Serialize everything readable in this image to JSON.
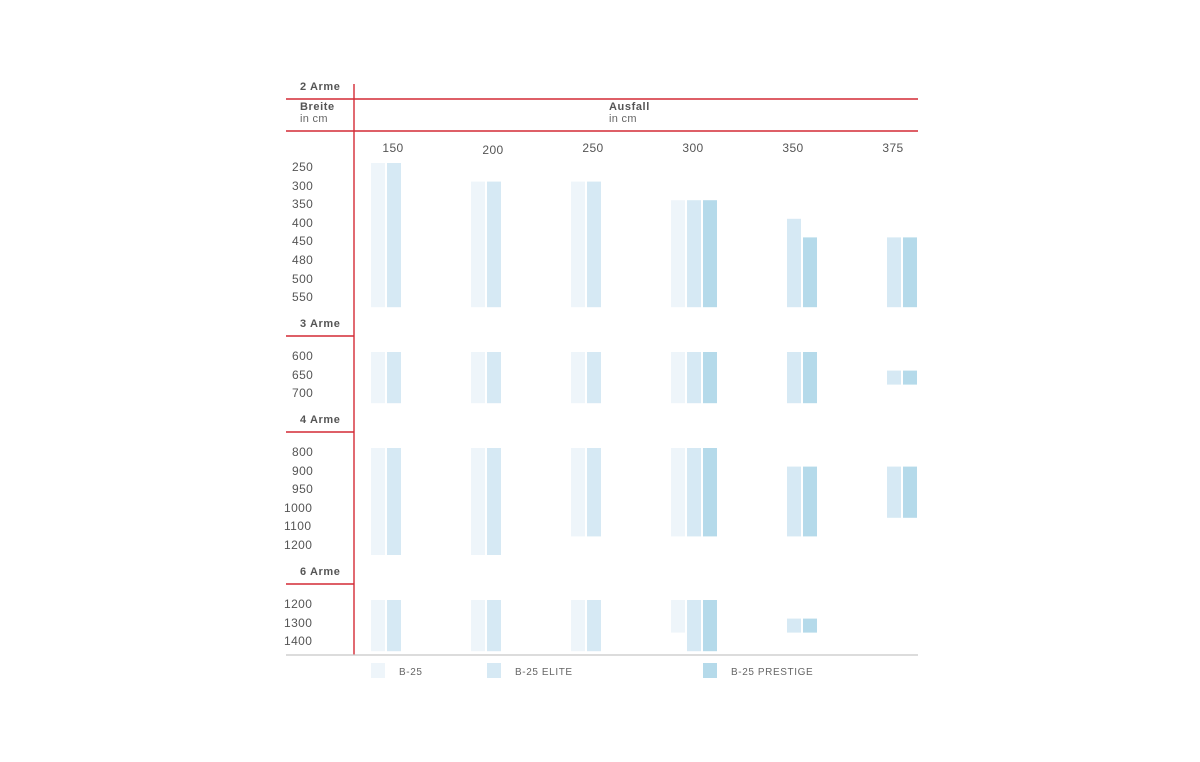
{
  "header": {
    "breite": "Breite",
    "breite_unit": "in cm",
    "ausfall": "Ausfall",
    "ausfall_unit": "in cm"
  },
  "colors": {
    "B-25": "#eef5fa",
    "B-25 ELITE": "#d6e9f4",
    "B-25 PRESTIGE": "#b5daea",
    "grid_red": "#d42a35",
    "baseline_gray": "#c8c8c8"
  },
  "chart_data": {
    "type": "table",
    "x_label": "Ausfall",
    "x_unit": "in cm",
    "y_label": "Breite",
    "y_unit": "in cm",
    "x_values": [
      "150",
      "200",
      "250",
      "300",
      "350",
      "375"
    ],
    "models": [
      "B-25",
      "B-25 ELITE",
      "B-25 PRESTIGE"
    ],
    "groups": [
      {
        "label": "2 Arme",
        "widths": [
          "250",
          "300",
          "350",
          "400",
          "450",
          "480",
          "500",
          "550"
        ],
        "availability": {
          "150": {
            "B-25": [
              "250",
              "550"
            ],
            "B-25 ELITE": [
              "250",
              "550"
            ]
          },
          "200": {
            "B-25": [
              "300",
              "550"
            ],
            "B-25 ELITE": [
              "300",
              "550"
            ]
          },
          "250": {
            "B-25": [
              "300",
              "550"
            ],
            "B-25 ELITE": [
              "300",
              "550"
            ]
          },
          "300": {
            "B-25": [
              "350",
              "550"
            ],
            "B-25 ELITE": [
              "350",
              "550"
            ],
            "B-25 PRESTIGE": [
              "350",
              "550"
            ]
          },
          "350": {
            "B-25 ELITE": [
              "400",
              "550"
            ],
            "B-25 PRESTIGE": [
              "450",
              "550"
            ]
          },
          "375": {
            "B-25 ELITE": [
              "450",
              "550"
            ],
            "B-25 PRESTIGE": [
              "450",
              "550"
            ]
          }
        }
      },
      {
        "label": "3 Arme",
        "widths": [
          "600",
          "650",
          "700"
        ],
        "availability": {
          "150": {
            "B-25": [
              "600",
              "700"
            ],
            "B-25 ELITE": [
              "600",
              "700"
            ]
          },
          "200": {
            "B-25": [
              "600",
              "700"
            ],
            "B-25 ELITE": [
              "600",
              "700"
            ]
          },
          "250": {
            "B-25": [
              "600",
              "700"
            ],
            "B-25 ELITE": [
              "600",
              "700"
            ]
          },
          "300": {
            "B-25": [
              "600",
              "700"
            ],
            "B-25 ELITE": [
              "600",
              "700"
            ],
            "B-25 PRESTIGE": [
              "600",
              "700"
            ]
          },
          "350": {
            "B-25 ELITE": [
              "600",
              "700"
            ],
            "B-25 PRESTIGE": [
              "600",
              "700"
            ]
          },
          "375": {
            "B-25 ELITE": [
              "650",
              "650"
            ],
            "B-25 PRESTIGE": [
              "650",
              "650"
            ]
          }
        }
      },
      {
        "label": "4 Arme",
        "widths": [
          "800",
          "900",
          "950",
          "1000",
          "1100",
          "1200"
        ],
        "availability": {
          "150": {
            "B-25": [
              "800",
              "1200"
            ],
            "B-25 ELITE": [
              "800",
              "1200"
            ]
          },
          "200": {
            "B-25": [
              "800",
              "1200"
            ],
            "B-25 ELITE": [
              "800",
              "1200"
            ]
          },
          "250": {
            "B-25": [
              "800",
              "1100"
            ],
            "B-25 ELITE": [
              "800",
              "1100"
            ]
          },
          "300": {
            "B-25": [
              "800",
              "1100"
            ],
            "B-25 ELITE": [
              "800",
              "1100"
            ],
            "B-25 PRESTIGE": [
              "800",
              "1100"
            ]
          },
          "350": {
            "B-25 ELITE": [
              "900",
              "1100"
            ],
            "B-25 PRESTIGE": [
              "900",
              "1100"
            ]
          },
          "375": {
            "B-25 ELITE": [
              "900",
              "1000"
            ],
            "B-25 PRESTIGE": [
              "900",
              "1000"
            ]
          }
        }
      },
      {
        "label": "6 Arme",
        "widths": [
          "1200",
          "1300",
          "1400"
        ],
        "availability": {
          "150": {
            "B-25": [
              "1200",
              "1400"
            ],
            "B-25 ELITE": [
              "1200",
              "1400"
            ]
          },
          "200": {
            "B-25": [
              "1200",
              "1400"
            ],
            "B-25 ELITE": [
              "1200",
              "1400"
            ]
          },
          "250": {
            "B-25": [
              "1200",
              "1400"
            ],
            "B-25 ELITE": [
              "1200",
              "1400"
            ]
          },
          "300": {
            "B-25": [
              "1200",
              "1300"
            ],
            "B-25 ELITE": [
              "1200",
              "1400"
            ],
            "B-25 PRESTIGE": [
              "1200",
              "1400"
            ]
          },
          "350": {
            "B-25 ELITE": [
              "1300",
              "1300"
            ],
            "B-25 PRESTIGE": [
              "1300",
              "1300"
            ]
          }
        }
      }
    ],
    "legend": [
      "B-25",
      "B-25 ELITE",
      "B-25 PRESTIGE"
    ],
    "legend_position": "bottom"
  }
}
